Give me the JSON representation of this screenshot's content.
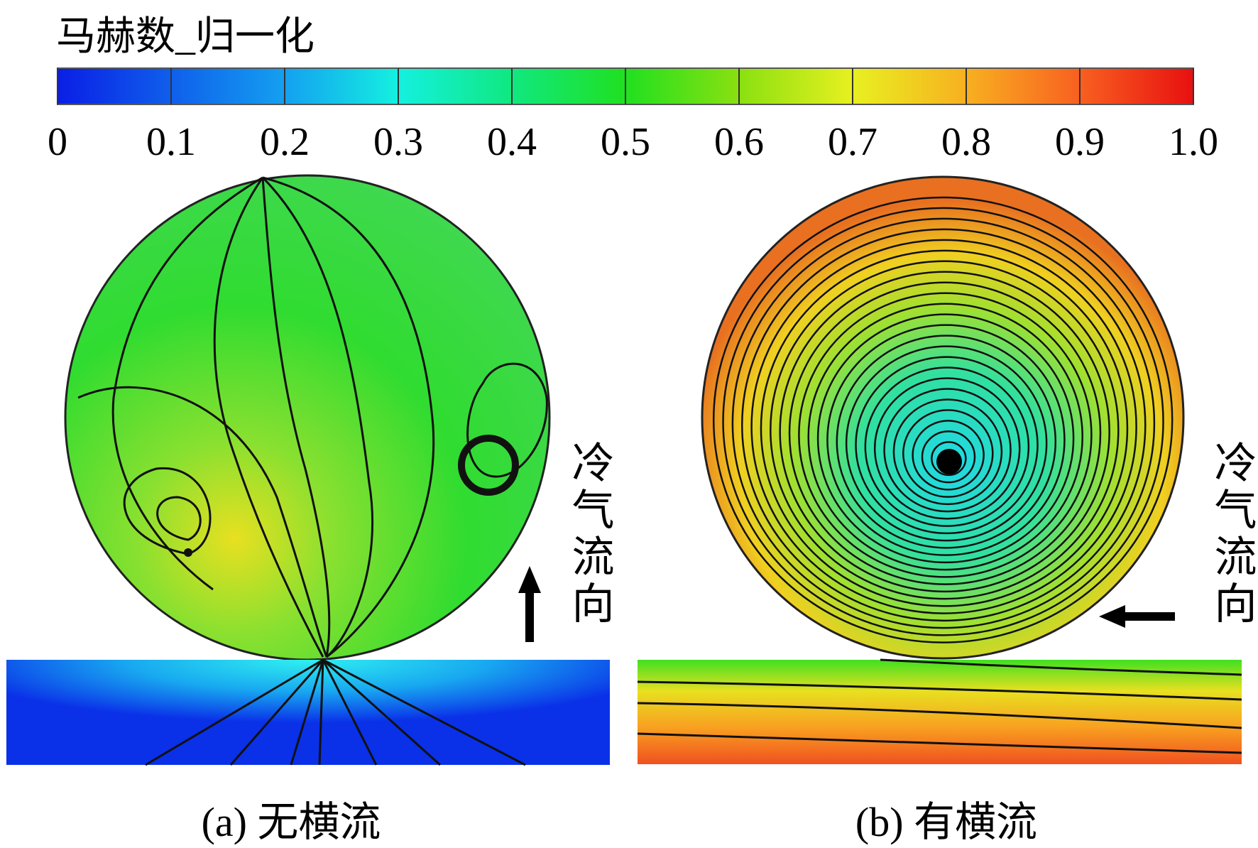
{
  "colorbar": {
    "title": "马赫数_归一化",
    "range": [
      0,
      1
    ],
    "ticks": [
      0,
      0.1,
      0.2,
      0.3,
      0.4,
      0.5,
      0.6,
      0.7,
      0.8,
      0.9,
      {
        "value": 1,
        "label": "1.0"
      }
    ]
  },
  "panels": [
    {
      "caption": "(a) 无横流",
      "annotation": "冷气流向"
    },
    {
      "caption": "(b) 有横流",
      "annotation": "冷气流向"
    }
  ]
}
